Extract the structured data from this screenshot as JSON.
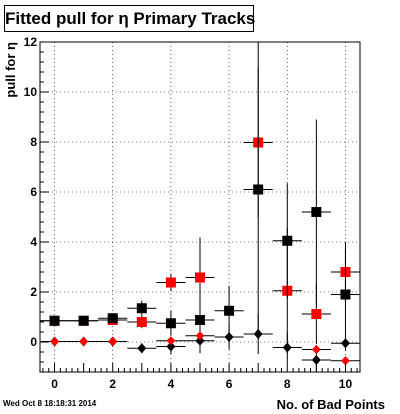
{
  "title": "Fitted pull for η Primary Tracks",
  "footer": "Wed Oct  8 18:18:31 2014",
  "chart_data": {
    "type": "scatter",
    "title": "Fitted pull for η Primary Tracks",
    "xlabel": "No. of Bad Points",
    "ylabel": "pull for η",
    "xlim": [
      -0.5,
      10.5
    ],
    "ylim": [
      -1.2,
      12.0
    ],
    "xticks": [
      0,
      2,
      4,
      6,
      8,
      10
    ],
    "yticks": [
      0,
      2,
      4,
      6,
      8,
      10,
      12
    ],
    "grid": true,
    "series": [
      {
        "color": "#ff0000",
        "marker": "square",
        "x": [
          0,
          1,
          2,
          3,
          4,
          5,
          7,
          8,
          9,
          10
        ],
        "y": [
          0.85,
          0.85,
          0.88,
          0.8,
          2.38,
          2.58,
          7.98,
          2.05,
          1.12,
          2.8
        ],
        "yerr": [
          0.05,
          0.05,
          0.1,
          0.25,
          0.35,
          1.6,
          3.0,
          2.5,
          1.2,
          1.2
        ]
      },
      {
        "color": "#000000",
        "marker": "square",
        "x": [
          0,
          1,
          2,
          3,
          4,
          5,
          6,
          7,
          8,
          9,
          10
        ],
        "y": [
          0.85,
          0.85,
          0.95,
          1.35,
          0.75,
          0.88,
          1.25,
          6.1,
          4.05,
          5.2,
          1.9
        ],
        "yerr": [
          0.05,
          0.05,
          0.1,
          0.3,
          0.5,
          1.0,
          1.0,
          6.0,
          2.3,
          3.7,
          1.8
        ]
      },
      {
        "color": "#000000",
        "marker": "diamond",
        "x": [
          0,
          1,
          2,
          3,
          4,
          5,
          6,
          7,
          8,
          9,
          10
        ],
        "y": [
          0.02,
          0.02,
          0.02,
          -0.25,
          -0.18,
          0.05,
          0.2,
          0.32,
          -0.22,
          -0.72,
          -0.05
        ],
        "yerr": [
          0.03,
          0.03,
          0.05,
          0.2,
          0.3,
          0.5,
          0.5,
          0.8,
          0.6,
          0.6,
          0.3
        ]
      },
      {
        "color": "#ff0000",
        "marker": "circle",
        "x": [
          0,
          1,
          2,
          4,
          5,
          9,
          10
        ],
        "y": [
          0.02,
          0.02,
          0.02,
          0.05,
          0.25,
          -0.3,
          -0.75
        ],
        "yerr": [
          0.02,
          0.02,
          0.03,
          0.1,
          0.2,
          0.1,
          0.1
        ]
      }
    ]
  }
}
